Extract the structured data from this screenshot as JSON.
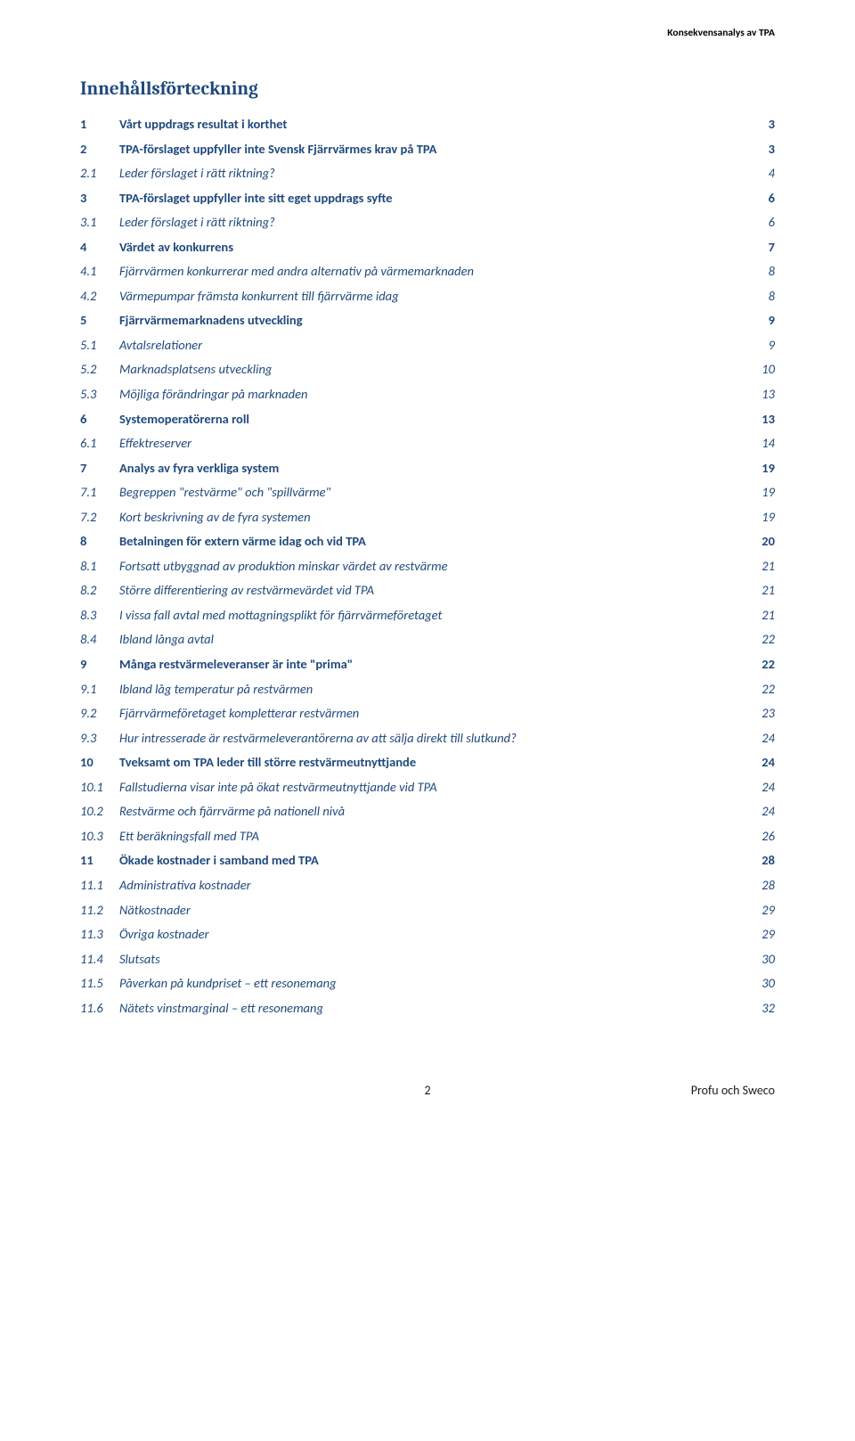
{
  "header": {
    "right": "Konsekvensanalys av TPA"
  },
  "title": "Innehållsförteckning",
  "toc": [
    {
      "level": 1,
      "num": "1",
      "label": "Vårt uppdrags resultat i korthet",
      "page": "3"
    },
    {
      "level": 1,
      "num": "2",
      "label": "TPA-förslaget uppfyller inte Svensk Fjärrvärmes krav på TPA",
      "page": "3"
    },
    {
      "level": 2,
      "num": "2.1",
      "label": "Leder förslaget i rätt riktning?",
      "page": "4"
    },
    {
      "level": 1,
      "num": "3",
      "label": "TPA-förslaget uppfyller inte sitt eget uppdrags syfte",
      "page": "6"
    },
    {
      "level": 2,
      "num": "3.1",
      "label": "Leder förslaget i rätt riktning?",
      "page": "6"
    },
    {
      "level": 1,
      "num": "4",
      "label": "Värdet av konkurrens",
      "page": "7"
    },
    {
      "level": 2,
      "num": "4.1",
      "label": "Fjärrvärmen konkurrerar med andra alternativ på värmemarknaden",
      "page": "8"
    },
    {
      "level": 2,
      "num": "4.2",
      "label": "Värmepumpar främsta konkurrent till fjärrvärme idag",
      "page": "8"
    },
    {
      "level": 1,
      "num": "5",
      "label": "Fjärrvärmemarknadens utveckling",
      "page": "9"
    },
    {
      "level": 2,
      "num": "5.1",
      "label": "Avtalsrelationer",
      "page": "9"
    },
    {
      "level": 2,
      "num": "5.2",
      "label": "Marknadsplatsens utveckling",
      "page": "10"
    },
    {
      "level": 2,
      "num": "5.3",
      "label": "Möjliga förändringar på marknaden",
      "page": "13"
    },
    {
      "level": 1,
      "num": "6",
      "label": "Systemoperatörerna roll",
      "page": "13"
    },
    {
      "level": 2,
      "num": "6.1",
      "label": "Effektreserver",
      "page": "14"
    },
    {
      "level": 1,
      "num": "7",
      "label": "Analys av fyra verkliga system",
      "page": "19"
    },
    {
      "level": 2,
      "num": "7.1",
      "label": "Begreppen \"restvärme\" och \"spillvärme\"",
      "page": "19"
    },
    {
      "level": 2,
      "num": "7.2",
      "label": "Kort beskrivning av de fyra systemen",
      "page": "19"
    },
    {
      "level": 1,
      "num": "8",
      "label": "Betalningen för extern värme idag och vid TPA",
      "page": "20"
    },
    {
      "level": 2,
      "num": "8.1",
      "label": "Fortsatt utbyggnad av produktion minskar värdet av restvärme",
      "page": "21"
    },
    {
      "level": 2,
      "num": "8.2",
      "label": "Större differentiering av restvärmevärdet vid TPA",
      "page": "21"
    },
    {
      "level": 2,
      "num": "8.3",
      "label": "I vissa fall avtal med mottagningsplikt för fjärrvärmeföretaget",
      "page": "21"
    },
    {
      "level": 2,
      "num": "8.4",
      "label": "Ibland långa avtal",
      "page": "22"
    },
    {
      "level": 1,
      "num": "9",
      "label": "Många restvärmeleveranser är inte \"prima\"",
      "page": "22"
    },
    {
      "level": 2,
      "num": "9.1",
      "label": "Ibland låg temperatur på restvärmen",
      "page": "22"
    },
    {
      "level": 2,
      "num": "9.2",
      "label": "Fjärrvärmeföretaget kompletterar restvärmen",
      "page": "23"
    },
    {
      "level": 2,
      "num": "9.3",
      "label": "Hur intresserade är restvärmeleverantörerna av att sälja direkt till slutkund?",
      "page": "24"
    },
    {
      "level": 1,
      "num": "10",
      "label": "Tveksamt om TPA leder till större restvärmeutnyttjande",
      "page": "24"
    },
    {
      "level": 2,
      "num": "10.1",
      "label": "Fallstudierna visar inte på ökat restvärmeutnyttjande vid TPA",
      "page": "24"
    },
    {
      "level": 2,
      "num": "10.2",
      "label": "Restvärme och fjärrvärme på nationell nivå",
      "page": "24"
    },
    {
      "level": 2,
      "num": "10.3",
      "label": "Ett beräkningsfall med TPA",
      "page": "26"
    },
    {
      "level": 1,
      "num": "11",
      "label": "Ökade kostnader i samband med TPA",
      "page": "28"
    },
    {
      "level": 2,
      "num": "11.1",
      "label": "Administrativa kostnader",
      "page": "28"
    },
    {
      "level": 2,
      "num": "11.2",
      "label": "Nätkostnader",
      "page": "29"
    },
    {
      "level": 2,
      "num": "11.3",
      "label": "Övriga kostnader",
      "page": "29"
    },
    {
      "level": 2,
      "num": "11.4",
      "label": "Slutsats",
      "page": "30"
    },
    {
      "level": 2,
      "num": "11.5",
      "label": "Påverkan på kundpriset – ett resonemang",
      "page": "30"
    },
    {
      "level": 2,
      "num": "11.6",
      "label": "Nätets vinstmarginal – ett resonemang",
      "page": "32"
    }
  ],
  "footer": {
    "page_number": "2",
    "right": "Profu och Sweco"
  },
  "colors": {
    "heading_blue": "#1f497d",
    "text_black": "#000000",
    "background": "#ffffff"
  },
  "typography": {
    "title_fontsize_pt": 16,
    "body_fontsize_pt": 11,
    "header_fontsize_pt": 9,
    "font_family_heading": "Cambria",
    "font_family_body": "Calibri"
  }
}
